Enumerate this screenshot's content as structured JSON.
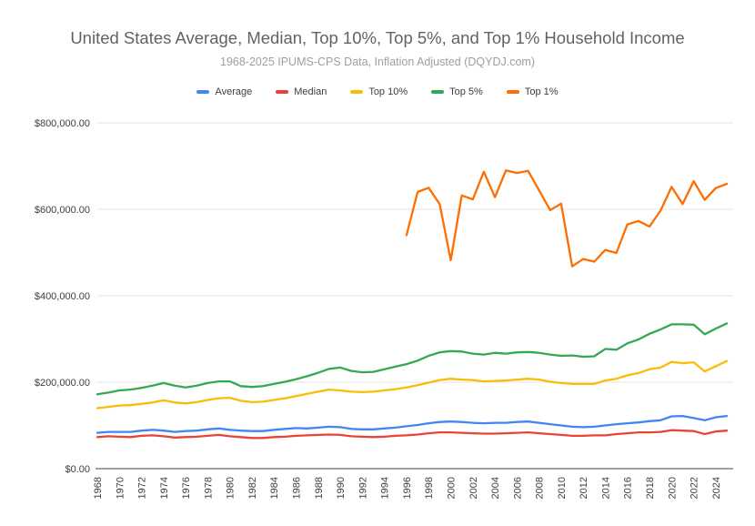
{
  "chart": {
    "title": "United States Average, Median, Top 10%, Top 5%, and Top 1% Household Income",
    "subtitle": "1968-2025 IPUMS-CPS Data, Inflation Adjusted (DQYDJ.com)",
    "title_color": "#5f6368",
    "subtitle_color": "#9e9e9e",
    "background_color": "#ffffff",
    "gridline_color": "#e4e4e4",
    "axis_color": "#424242"
  },
  "chart_data": {
    "type": "line",
    "title": "United States Average, Median, Top 10%, Top 5%, and Top 1% Household Income",
    "subtitle": "1968-2025 IPUMS-CPS Data, Inflation Adjusted (DQYDJ.com)",
    "x_label": "",
    "y_label": "",
    "x": [
      1968,
      1969,
      1970,
      1971,
      1972,
      1973,
      1974,
      1975,
      1976,
      1977,
      1978,
      1979,
      1980,
      1981,
      1982,
      1983,
      1984,
      1985,
      1986,
      1987,
      1988,
      1989,
      1990,
      1991,
      1992,
      1993,
      1994,
      1995,
      1996,
      1997,
      1998,
      1999,
      2000,
      2001,
      2002,
      2003,
      2004,
      2005,
      2006,
      2007,
      2008,
      2009,
      2010,
      2011,
      2012,
      2013,
      2014,
      2015,
      2016,
      2017,
      2018,
      2019,
      2020,
      2021,
      2022,
      2023,
      2024,
      2025
    ],
    "series": [
      {
        "name": "Average",
        "color": "#4285F4",
        "values": [
          83000,
          85000,
          85000,
          85000,
          88000,
          90000,
          88000,
          85000,
          87000,
          88000,
          91000,
          93000,
          90000,
          88000,
          87000,
          87000,
          90000,
          92000,
          94000,
          93000,
          95000,
          97000,
          96000,
          92000,
          91000,
          91000,
          93000,
          95000,
          98000,
          101000,
          105000,
          108000,
          109000,
          108000,
          106000,
          105000,
          106000,
          106000,
          108000,
          109000,
          106000,
          103000,
          100000,
          97000,
          96000,
          97000,
          100000,
          103000,
          105000,
          107000,
          110000,
          112000,
          121000,
          122000,
          117000,
          112000,
          119000,
          122000
        ]
      },
      {
        "name": "Median",
        "color": "#EA4335",
        "values": [
          73000,
          75000,
          74000,
          73000,
          76000,
          77000,
          75000,
          72000,
          73000,
          74000,
          76000,
          78000,
          75000,
          73000,
          71000,
          71000,
          73000,
          74000,
          76000,
          77000,
          78000,
          79000,
          78000,
          75000,
          74000,
          73000,
          74000,
          76000,
          77000,
          79000,
          82000,
          84000,
          84000,
          83000,
          82000,
          81000,
          81000,
          82000,
          83000,
          84000,
          82000,
          80000,
          78000,
          76000,
          76000,
          77000,
          77000,
          80000,
          82000,
          84000,
          84000,
          85000,
          89000,
          88000,
          87000,
          80000,
          86000,
          88000
        ]
      },
      {
        "name": "Top 10%",
        "color": "#FBBC04",
        "values": [
          140000,
          143000,
          146000,
          147000,
          150000,
          153000,
          158000,
          153000,
          151000,
          154000,
          159000,
          163000,
          164000,
          157000,
          154000,
          155000,
          159000,
          163000,
          168000,
          173000,
          178000,
          183000,
          181000,
          178000,
          177000,
          178000,
          181000,
          184000,
          188000,
          193000,
          199000,
          205000,
          208000,
          206000,
          205000,
          202000,
          203000,
          204000,
          206000,
          208000,
          206000,
          201000,
          198000,
          196000,
          196000,
          196000,
          204000,
          208000,
          216000,
          221000,
          230000,
          234000,
          247000,
          244000,
          246000,
          225000,
          237000,
          249000
        ]
      },
      {
        "name": "Top 5%",
        "color": "#34A853",
        "values": [
          172000,
          176000,
          181000,
          183000,
          187000,
          192000,
          198000,
          192000,
          188000,
          192000,
          198000,
          202000,
          202000,
          191000,
          189000,
          191000,
          196000,
          201000,
          207000,
          214000,
          222000,
          231000,
          234000,
          226000,
          223000,
          224000,
          230000,
          236000,
          242000,
          250000,
          261000,
          269000,
          272000,
          271000,
          266000,
          264000,
          268000,
          266000,
          269000,
          270000,
          268000,
          264000,
          261000,
          262000,
          259000,
          260000,
          277000,
          275000,
          290000,
          299000,
          312000,
          322000,
          334000,
          334000,
          333000,
          311000,
          324000,
          336000
        ]
      },
      {
        "name": "Top 1%",
        "color": "#FF6D01",
        "values": [
          null,
          null,
          null,
          null,
          null,
          null,
          null,
          null,
          null,
          null,
          null,
          null,
          null,
          null,
          null,
          null,
          null,
          null,
          null,
          null,
          null,
          null,
          null,
          null,
          null,
          null,
          null,
          null,
          540000,
          640000,
          650000,
          612000,
          482000,
          632000,
          623000,
          687000,
          628000,
          690000,
          684000,
          689000,
          644000,
          598000,
          613000,
          468000,
          485000,
          479000,
          506000,
          499000,
          565000,
          573000,
          560000,
          597000,
          652000,
          612000,
          665000,
          622000,
          649000,
          659000
        ]
      }
    ],
    "y_axis": {
      "min": 0,
      "max": 800000,
      "tick_values": [
        0,
        200000,
        400000,
        600000,
        800000
      ],
      "tick_labels": [
        "$0.00",
        "$200,000.00",
        "$400,000.00",
        "$600,000.00",
        "$800,000.00"
      ]
    },
    "x_axis": {
      "tick_years": [
        1968,
        1970,
        1972,
        1974,
        1976,
        1978,
        1980,
        1982,
        1984,
        1986,
        1988,
        1990,
        1992,
        1994,
        1996,
        1998,
        2000,
        2002,
        2004,
        2006,
        2008,
        2010,
        2012,
        2014,
        2016,
        2018,
        2020,
        2022,
        2024
      ]
    },
    "grid": true,
    "legend": {
      "position": "top",
      "entries": [
        "Average",
        "Median",
        "Top 10%",
        "Top 5%",
        "Top 1%"
      ]
    }
  }
}
